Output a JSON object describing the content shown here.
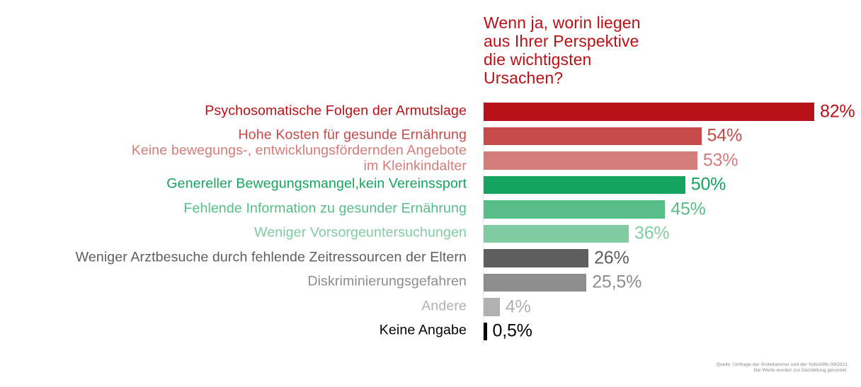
{
  "title": {
    "lines": [
      "Wenn ja, worin liegen",
      "aus Ihrer Perspektive",
      "die wichtigsten",
      "Ursachen?"
    ],
    "color": "#bb1016"
  },
  "chart_data": {
    "type": "bar",
    "orientation": "horizontal",
    "title": "Wenn ja, worin liegen aus Ihrer Perspektive die wichtigsten Ursachen?",
    "xlim": [
      0,
      82
    ],
    "grid": false,
    "legend": false,
    "categories": [
      "Psychosomatische Folgen der Armutslage",
      "Hohe Kosten für gesunde Ernährung",
      "Keine bewegungs-, entwicklungsfördernden Angebote im Kleinkindalter",
      "Genereller Bewegungsmangel,kein Vereinssport",
      "Fehlende Information zu gesunder Ernährung",
      "Weniger Vorsorgeuntersuchungen",
      "Weniger Arztbesuche durch fehlende Zeitressourcen der Eltern",
      "Diskriminierungsgefahren",
      "Andere",
      "Keine Angabe"
    ],
    "values": [
      82,
      54,
      53,
      50,
      45,
      36,
      26,
      25.5,
      4,
      0.5
    ],
    "bars": [
      {
        "label_lines": [
          "Psychosomatische Folgen der Armutslage"
        ],
        "value": 82,
        "display_value": "82%",
        "color": "#b81117"
      },
      {
        "label_lines": [
          "Hohe Kosten für gesunde Ernährung"
        ],
        "value": 54,
        "display_value": "54%",
        "color": "#c64a4a"
      },
      {
        "label_lines": [
          "Keine bewegungs-, entwicklungsfördernden Angebote",
          "im Kleinkindalter"
        ],
        "value": 53,
        "display_value": "53%",
        "color": "#d37c7b"
      },
      {
        "label_lines": [
          "Genereller Bewegungsmangel,kein Vereinssport"
        ],
        "value": 50,
        "display_value": "50%",
        "color": "#14a45f"
      },
      {
        "label_lines": [
          "Fehlende Information zu gesunder Ernährung"
        ],
        "value": 45,
        "display_value": "45%",
        "color": "#57bd89"
      },
      {
        "label_lines": [
          "Weniger Vorsorgeuntersuchungen"
        ],
        "value": 36,
        "display_value": "36%",
        "color": "#81cba3"
      },
      {
        "label_lines": [
          "Weniger Arztbesuche durch fehlende Zeitressourcen der Eltern"
        ],
        "value": 26,
        "display_value": "26%",
        "color": "#5e5e5e"
      },
      {
        "label_lines": [
          "Diskriminierungsgefahren"
        ],
        "value": 25.5,
        "display_value": "25,5%",
        "color": "#8d8d8d"
      },
      {
        "label_lines": [
          "Andere"
        ],
        "value": 4,
        "display_value": "4%",
        "color": "#b1b1b1"
      },
      {
        "label_lines": [
          "Keine Angabe"
        ],
        "value": 0.5,
        "display_value": "0,5%",
        "color": "#000000"
      }
    ]
  },
  "source_note": {
    "lines": [
      "Quelle: Umfrage der Ärztekammer und der Volkshilfe 09/2021",
      "Die Werte wurden zur Darstellung gerundet."
    ]
  }
}
